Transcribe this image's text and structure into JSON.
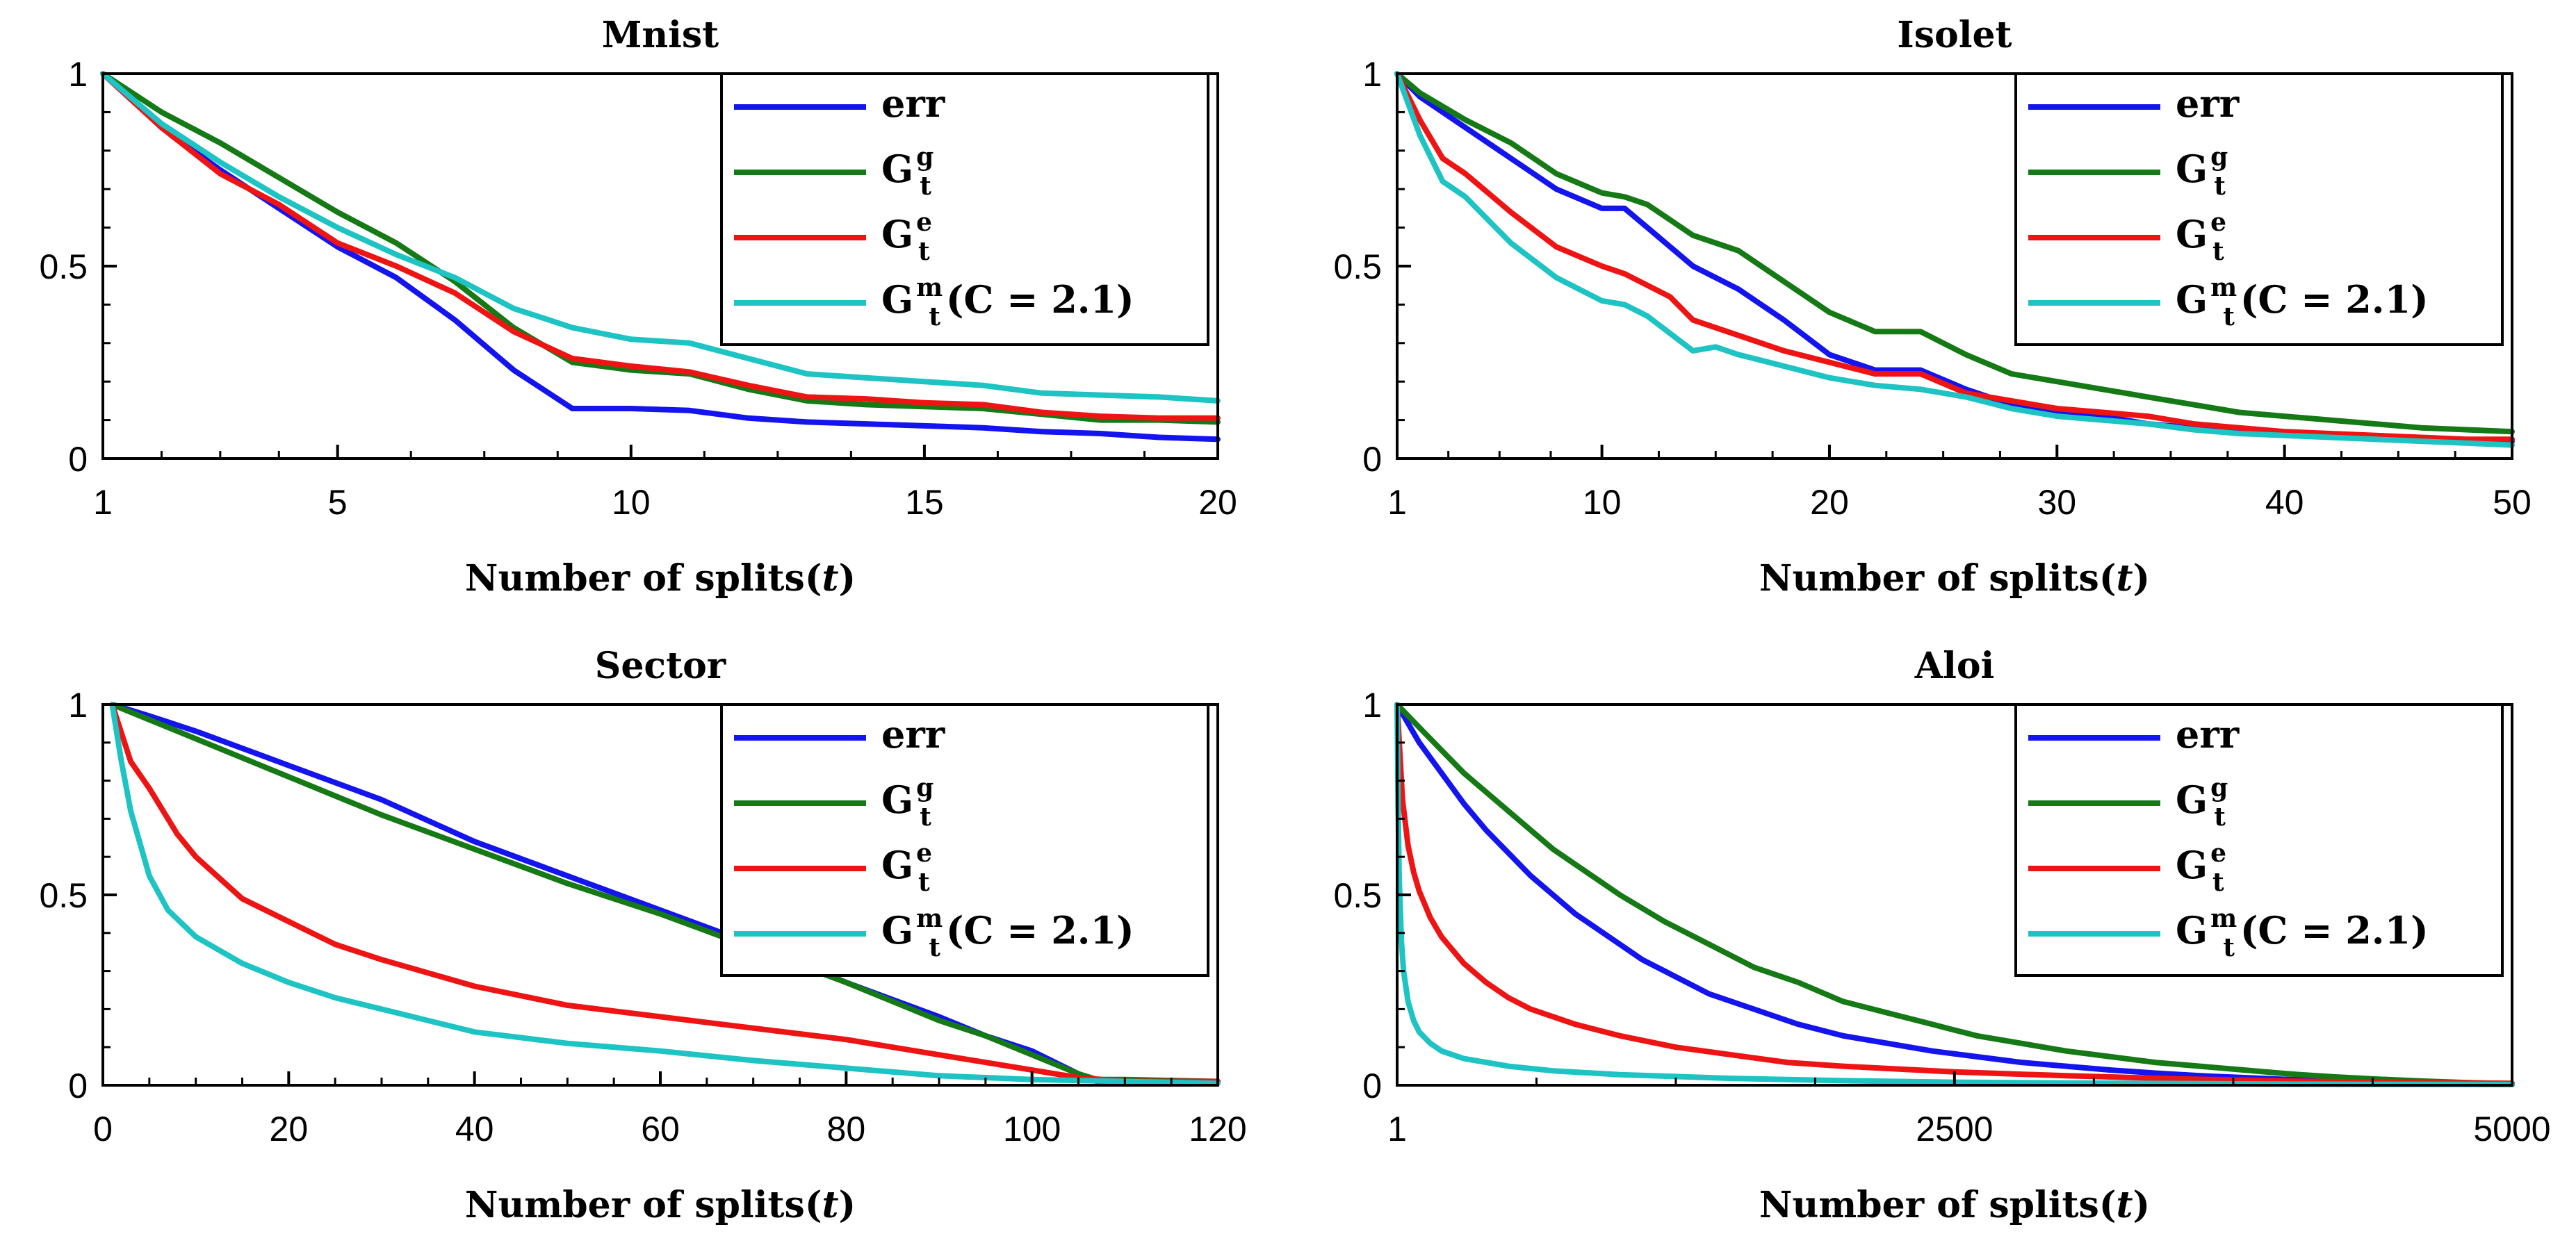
{
  "colors": {
    "err": "#1414ee",
    "Gg": "#157a15",
    "Ge": "#ee1414",
    "Gm": "#1ec3c3"
  },
  "legend_entries": [
    {
      "key": "err",
      "main": "err",
      "sup": "",
      "sub": "",
      "tail": ""
    },
    {
      "key": "Gg",
      "main": "G",
      "sup": "g",
      "sub": "t",
      "tail": ""
    },
    {
      "key": "Ge",
      "main": "G",
      "sup": "e",
      "sub": "t",
      "tail": ""
    },
    {
      "key": "Gm",
      "main": "G",
      "sup": "m",
      "sub": "t",
      "tail": "(C = 2.1)"
    }
  ],
  "chart_data": [
    {
      "type": "line",
      "title": "Mnist",
      "xlabel": "Number of splits",
      "xlabel_var": "t",
      "xlim": [
        1,
        20
      ],
      "xticks": [
        1,
        5,
        10,
        15,
        20
      ],
      "ylim": [
        0,
        1
      ],
      "yticks": [
        0,
        0.5,
        1
      ],
      "yticklabels": [
        "0",
        "0.5",
        "1"
      ],
      "legend_position": "top-right",
      "series": [
        {
          "name": "err",
          "x": [
            1,
            2,
            3,
            4,
            5,
            6,
            7,
            8,
            9,
            10,
            11,
            12,
            13,
            14,
            15,
            16,
            17,
            18,
            19,
            20
          ],
          "y": [
            1,
            0.86,
            0.75,
            0.65,
            0.55,
            0.47,
            0.36,
            0.23,
            0.13,
            0.13,
            0.125,
            0.105,
            0.095,
            0.09,
            0.085,
            0.08,
            0.07,
            0.065,
            0.055,
            0.05
          ]
        },
        {
          "name": "Gg",
          "x": [
            1,
            2,
            3,
            4,
            5,
            6,
            7,
            8,
            9,
            10,
            11,
            12,
            13,
            14,
            15,
            16,
            17,
            18,
            19,
            20
          ],
          "y": [
            1,
            0.9,
            0.82,
            0.73,
            0.64,
            0.56,
            0.46,
            0.34,
            0.25,
            0.23,
            0.22,
            0.18,
            0.15,
            0.14,
            0.135,
            0.13,
            0.115,
            0.1,
            0.1,
            0.095
          ]
        },
        {
          "name": "Ge",
          "x": [
            1,
            2,
            3,
            4,
            5,
            6,
            7,
            8,
            9,
            10,
            11,
            12,
            13,
            14,
            15,
            16,
            17,
            18,
            19,
            20
          ],
          "y": [
            1,
            0.86,
            0.74,
            0.66,
            0.56,
            0.5,
            0.43,
            0.33,
            0.26,
            0.24,
            0.225,
            0.19,
            0.16,
            0.155,
            0.145,
            0.14,
            0.12,
            0.11,
            0.105,
            0.105
          ]
        },
        {
          "name": "Gm",
          "x": [
            1,
            2,
            3,
            4,
            5,
            6,
            7,
            8,
            9,
            10,
            11,
            12,
            13,
            14,
            15,
            16,
            17,
            18,
            19,
            20
          ],
          "y": [
            1,
            0.87,
            0.77,
            0.68,
            0.6,
            0.53,
            0.47,
            0.39,
            0.34,
            0.31,
            0.3,
            0.26,
            0.22,
            0.21,
            0.2,
            0.19,
            0.17,
            0.165,
            0.16,
            0.15
          ]
        }
      ]
    },
    {
      "type": "line",
      "title": "Isolet",
      "xlabel": "Number of splits",
      "xlabel_var": "t",
      "xlim": [
        1,
        50
      ],
      "xticks": [
        1,
        10,
        20,
        30,
        40,
        50
      ],
      "ylim": [
        0,
        1
      ],
      "yticks": [
        0,
        0.5,
        1
      ],
      "yticklabels": [
        "0",
        "0.5",
        "1"
      ],
      "legend_position": "top-right",
      "series": [
        {
          "name": "err",
          "x": [
            1,
            2,
            4,
            6,
            8,
            10,
            11,
            12,
            14,
            16,
            18,
            20,
            22,
            24,
            26,
            28,
            30,
            32,
            34,
            36,
            38,
            40,
            42,
            44,
            46,
            48,
            50
          ],
          "y": [
            1,
            0.94,
            0.86,
            0.78,
            0.7,
            0.65,
            0.65,
            0.6,
            0.5,
            0.44,
            0.36,
            0.27,
            0.23,
            0.23,
            0.18,
            0.14,
            0.12,
            0.11,
            0.09,
            0.08,
            0.07,
            0.065,
            0.06,
            0.055,
            0.05,
            0.045,
            0.045
          ]
        },
        {
          "name": "Gg",
          "x": [
            1,
            2,
            4,
            6,
            8,
            10,
            11,
            12,
            14,
            16,
            18,
            20,
            22,
            24,
            26,
            28,
            30,
            32,
            34,
            36,
            38,
            40,
            42,
            44,
            46,
            48,
            50
          ],
          "y": [
            1,
            0.95,
            0.88,
            0.82,
            0.74,
            0.69,
            0.68,
            0.66,
            0.58,
            0.54,
            0.46,
            0.38,
            0.33,
            0.33,
            0.27,
            0.22,
            0.2,
            0.18,
            0.16,
            0.14,
            0.12,
            0.11,
            0.1,
            0.09,
            0.08,
            0.075,
            0.07
          ]
        },
        {
          "name": "Ge",
          "x": [
            1,
            2,
            3,
            4,
            6,
            8,
            10,
            11,
            12,
            13,
            14,
            16,
            18,
            20,
            22,
            24,
            26,
            28,
            30,
            32,
            34,
            36,
            38,
            40,
            42,
            44,
            46,
            48,
            50
          ],
          "y": [
            1,
            0.88,
            0.78,
            0.74,
            0.64,
            0.55,
            0.5,
            0.48,
            0.45,
            0.42,
            0.36,
            0.32,
            0.28,
            0.25,
            0.22,
            0.22,
            0.17,
            0.15,
            0.13,
            0.12,
            0.11,
            0.09,
            0.08,
            0.07,
            0.065,
            0.06,
            0.055,
            0.05,
            0.05
          ]
        },
        {
          "name": "Gm",
          "x": [
            1,
            2,
            3,
            4,
            6,
            8,
            10,
            11,
            12,
            14,
            15,
            16,
            18,
            20,
            22,
            24,
            26,
            28,
            30,
            32,
            34,
            36,
            38,
            40,
            42,
            44,
            46,
            48,
            50
          ],
          "y": [
            1,
            0.84,
            0.72,
            0.68,
            0.56,
            0.47,
            0.41,
            0.4,
            0.37,
            0.28,
            0.29,
            0.27,
            0.24,
            0.21,
            0.19,
            0.18,
            0.16,
            0.13,
            0.11,
            0.1,
            0.09,
            0.075,
            0.065,
            0.06,
            0.055,
            0.05,
            0.045,
            0.04,
            0.035
          ]
        }
      ]
    },
    {
      "type": "line",
      "title": "Sector",
      "xlabel": "Number of splits",
      "xlabel_var": "t",
      "xlim": [
        0,
        120
      ],
      "xticks": [
        0,
        20,
        40,
        60,
        80,
        100,
        120
      ],
      "ylim": [
        0,
        1
      ],
      "yticks": [
        0,
        0.5,
        1
      ],
      "yticklabels": [
        "0",
        "0.5",
        "1"
      ],
      "legend_position": "top-right",
      "series": [
        {
          "name": "err",
          "x": [
            1,
            5,
            10,
            20,
            30,
            40,
            50,
            60,
            70,
            80,
            90,
            95,
            100,
            105,
            107,
            110,
            120
          ],
          "y": [
            1,
            0.97,
            0.93,
            0.84,
            0.75,
            0.64,
            0.55,
            0.46,
            0.37,
            0.27,
            0.18,
            0.13,
            0.09,
            0.03,
            0.01,
            0.01,
            0.01
          ]
        },
        {
          "name": "Gg",
          "x": [
            1,
            5,
            10,
            20,
            30,
            40,
            50,
            60,
            70,
            80,
            90,
            95,
            100,
            105,
            107,
            110,
            120
          ],
          "y": [
            1,
            0.96,
            0.91,
            0.81,
            0.71,
            0.62,
            0.53,
            0.45,
            0.36,
            0.27,
            0.17,
            0.13,
            0.08,
            0.03,
            0.015,
            0.015,
            0.01
          ]
        },
        {
          "name": "Ge",
          "x": [
            1,
            3,
            5,
            8,
            10,
            15,
            20,
            25,
            30,
            40,
            50,
            60,
            70,
            80,
            90,
            95,
            100,
            105,
            110,
            120
          ],
          "y": [
            1,
            0.85,
            0.78,
            0.66,
            0.6,
            0.49,
            0.43,
            0.37,
            0.33,
            0.26,
            0.21,
            0.18,
            0.15,
            0.12,
            0.08,
            0.06,
            0.04,
            0.02,
            0.01,
            0.01
          ]
        },
        {
          "name": "Gm",
          "x": [
            1,
            2,
            3,
            5,
            7,
            10,
            15,
            20,
            25,
            30,
            40,
            50,
            60,
            70,
            80,
            90,
            95,
            100,
            110,
            120
          ],
          "y": [
            1,
            0.85,
            0.72,
            0.55,
            0.46,
            0.39,
            0.32,
            0.27,
            0.23,
            0.2,
            0.14,
            0.11,
            0.09,
            0.065,
            0.045,
            0.025,
            0.02,
            0.015,
            0.01,
            0.005
          ]
        }
      ]
    },
    {
      "type": "line",
      "title": "Aloi",
      "xlabel": "Number of splits",
      "xlabel_var": "t",
      "xlim": [
        1,
        5000
      ],
      "xticks": [
        1,
        2500,
        5000
      ],
      "ylim": [
        0,
        1
      ],
      "yticks": [
        0,
        0.5,
        1
      ],
      "yticklabels": [
        "0",
        "0.5",
        "1"
      ],
      "legend_position": "top-right",
      "series": [
        {
          "name": "err",
          "x": [
            1,
            100,
            200,
            300,
            400,
            500,
            600,
            700,
            800,
            900,
            1000,
            1100,
            1200,
            1400,
            1600,
            1800,
            2000,
            2200,
            2400,
            2600,
            2800,
            3000,
            3200,
            3400,
            3600,
            3800,
            4000,
            4200,
            4400,
            4600,
            4800,
            5000
          ],
          "y": [
            1,
            0.9,
            0.82,
            0.74,
            0.67,
            0.61,
            0.55,
            0.5,
            0.45,
            0.41,
            0.37,
            0.33,
            0.3,
            0.24,
            0.2,
            0.16,
            0.13,
            0.11,
            0.09,
            0.075,
            0.06,
            0.05,
            0.04,
            0.032,
            0.025,
            0.02,
            0.015,
            0.012,
            0.008,
            0.005,
            0.003,
            0.002
          ]
        },
        {
          "name": "Gg",
          "x": [
            1,
            100,
            200,
            300,
            400,
            500,
            600,
            700,
            800,
            900,
            1000,
            1200,
            1400,
            1600,
            1800,
            2000,
            2200,
            2400,
            2600,
            2800,
            3000,
            3200,
            3400,
            3600,
            3800,
            4000,
            4200,
            4400,
            4600,
            4800,
            5000
          ],
          "y": [
            1,
            0.94,
            0.88,
            0.82,
            0.77,
            0.72,
            0.67,
            0.62,
            0.58,
            0.54,
            0.5,
            0.43,
            0.37,
            0.31,
            0.27,
            0.22,
            0.19,
            0.16,
            0.13,
            0.11,
            0.09,
            0.075,
            0.06,
            0.05,
            0.04,
            0.03,
            0.022,
            0.016,
            0.011,
            0.007,
            0.004
          ]
        },
        {
          "name": "Ge",
          "x": [
            1,
            25,
            50,
            75,
            100,
            150,
            200,
            300,
            400,
            500,
            600,
            800,
            1000,
            1250,
            1500,
            1750,
            2000,
            2500,
            3000,
            3500,
            4000,
            4500,
            5000
          ],
          "y": [
            1,
            0.75,
            0.63,
            0.56,
            0.51,
            0.44,
            0.39,
            0.32,
            0.27,
            0.23,
            0.2,
            0.16,
            0.13,
            0.1,
            0.08,
            0.06,
            0.05,
            0.035,
            0.025,
            0.017,
            0.011,
            0.007,
            0.005
          ]
        },
        {
          "name": "Gm",
          "x": [
            1,
            5,
            10,
            20,
            30,
            50,
            75,
            100,
            150,
            200,
            300,
            400,
            500,
            700,
            1000,
            1500,
            2000,
            2500,
            3000,
            4000,
            5000
          ],
          "y": [
            1,
            0.75,
            0.55,
            0.38,
            0.3,
            0.22,
            0.17,
            0.14,
            0.11,
            0.09,
            0.07,
            0.06,
            0.05,
            0.038,
            0.028,
            0.018,
            0.012,
            0.008,
            0.006,
            0.003,
            0.002
          ]
        }
      ]
    }
  ]
}
